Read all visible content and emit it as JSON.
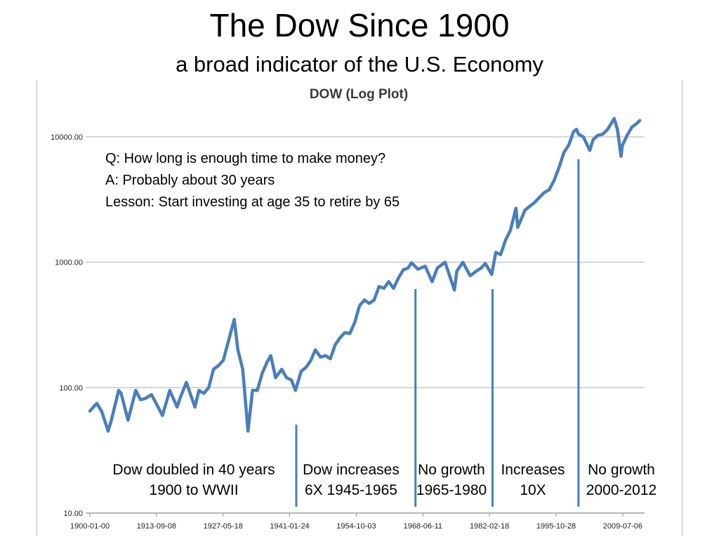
{
  "slide": {
    "title": "The Dow Since 1900",
    "subtitle": "a broad indicator of the U.S. Economy"
  },
  "annotation": {
    "lines": [
      "Q: How long is enough time to make money?",
      "A: Probably about 30 years",
      "Lesson: Start investing at age 35 to retire by 65"
    ]
  },
  "periods": [
    {
      "line1": "Dow doubled in 40 years",
      "line2": "1900 to WWII"
    },
    {
      "line1": "Dow increases",
      "line2": "6X 1945-1965"
    },
    {
      "line1": "No growth",
      "line2": "1965-1980"
    },
    {
      "line1": "Increases",
      "line2": "10X"
    },
    {
      "line1": "No growth",
      "line2": "2000-2012"
    }
  ],
  "colors": {
    "series": "#4a7ebb",
    "gridline": "#c8c8c8",
    "marker_line": "#4a7ebb"
  },
  "chart_data": {
    "type": "line",
    "title": "DOW (Log Plot)",
    "y_scale": "log",
    "ylim": [
      10,
      15000
    ],
    "y_ticks": [
      10,
      100,
      1000,
      10000
    ],
    "y_tick_labels": [
      "10.00",
      "100.00",
      "1000.00",
      "10000.00"
    ],
    "x_range": [
      "1900-01-00",
      "2013-12-31"
    ],
    "x_ticks": [
      "1900-01-00",
      "1913-09-08",
      "1927-05-18",
      "1941-01-24",
      "1954-10-03",
      "1968-06-11",
      "1982-02-18",
      "1995-10-28",
      "2009-07-06"
    ],
    "grid": "horizontal",
    "legend": "none",
    "series": [
      {
        "x": [
          "1900-01-01",
          "1901-06-01",
          "1902-06-01",
          "1903-10-01",
          "1904-06-01",
          "1905-12-01",
          "1906-06-01",
          "1907-11-01",
          "1909-06-01",
          "1910-06-01",
          "1911-06-01",
          "1912-09-01",
          "1914-12-01",
          "1916-06-01",
          "1917-12-01",
          "1918-06-01",
          "1919-11-01",
          "1921-08-01",
          "1922-06-01",
          "1923-06-01",
          "1924-06-01",
          "1925-06-01",
          "1926-06-01",
          "1927-06-01",
          "1928-06-01",
          "1929-09-01",
          "1930-06-01",
          "1931-06-01",
          "1932-07-01",
          "1933-06-01",
          "1934-06-01",
          "1935-06-01",
          "1936-06-01",
          "1937-03-01",
          "1938-03-01",
          "1939-06-01",
          "1940-06-01",
          "1941-06-01",
          "1942-04-01",
          "1943-06-01",
          "1944-06-01",
          "1945-06-01",
          "1946-05-01",
          "1947-06-01",
          "1948-06-01",
          "1949-06-01",
          "1950-06-01",
          "1951-06-01",
          "1952-06-01",
          "1953-06-01",
          "1954-06-01",
          "1955-06-01",
          "1956-06-01",
          "1957-06-01",
          "1958-06-01",
          "1959-06-01",
          "1960-06-01",
          "1961-06-01",
          "1962-06-01",
          "1963-06-01",
          "1964-06-01",
          "1965-06-01",
          "1966-02-01",
          "1967-06-01",
          "1968-12-01",
          "1970-05-01",
          "1971-06-01",
          "1973-01-01",
          "1974-12-01",
          "1975-06-01",
          "1976-09-01",
          "1977-06-01",
          "1978-03-01",
          "1979-06-01",
          "1980-06-01",
          "1981-04-01",
          "1982-08-01",
          "1983-06-01",
          "1984-06-01",
          "1985-06-01",
          "1986-06-01",
          "1987-08-01",
          "1987-12-01",
          "1988-06-01",
          "1989-06-01",
          "1990-06-01",
          "1991-06-01",
          "1992-06-01",
          "1993-06-01",
          "1994-06-01",
          "1995-06-01",
          "1996-06-01",
          "1997-06-01",
          "1998-06-01",
          "1999-06-01",
          "2000-01-01",
          "2000-06-01",
          "2001-06-01",
          "2002-10-01",
          "2003-06-01",
          "2004-06-01",
          "2005-06-01",
          "2006-06-01",
          "2007-10-01",
          "2008-06-01",
          "2009-03-01",
          "2009-06-01",
          "2010-06-01",
          "2011-06-01",
          "2012-06-01",
          "2013-01-01"
        ],
        "y": [
          65,
          75,
          65,
          45,
          55,
          95,
          90,
          55,
          95,
          80,
          82,
          88,
          60,
          95,
          70,
          80,
          110,
          70,
          95,
          90,
          100,
          140,
          150,
          165,
          230,
          350,
          200,
          140,
          45,
          95,
          95,
          130,
          160,
          180,
          120,
          140,
          120,
          115,
          95,
          135,
          145,
          165,
          200,
          175,
          180,
          170,
          220,
          250,
          275,
          270,
          330,
          450,
          500,
          470,
          500,
          640,
          620,
          700,
          620,
          750,
          870,
          900,
          990,
          880,
          930,
          700,
          900,
          1000,
          600,
          850,
          1000,
          880,
          780,
          850,
          900,
          980,
          800,
          1200,
          1150,
          1500,
          1800,
          2700,
          1900,
          2100,
          2600,
          2800,
          3000,
          3300,
          3600,
          3800,
          4500,
          5700,
          7500,
          8600,
          11000,
          11500,
          10500,
          10000,
          7800,
          9500,
          10300,
          10500,
          11500,
          14000,
          11500,
          7000,
          8500,
          10300,
          12000,
          12800,
          13500
        ]
      }
    ],
    "vertical_markers": [
      "1942-06-01",
      "1966-12-01",
      "1982-10-01",
      "2000-06-01"
    ]
  }
}
